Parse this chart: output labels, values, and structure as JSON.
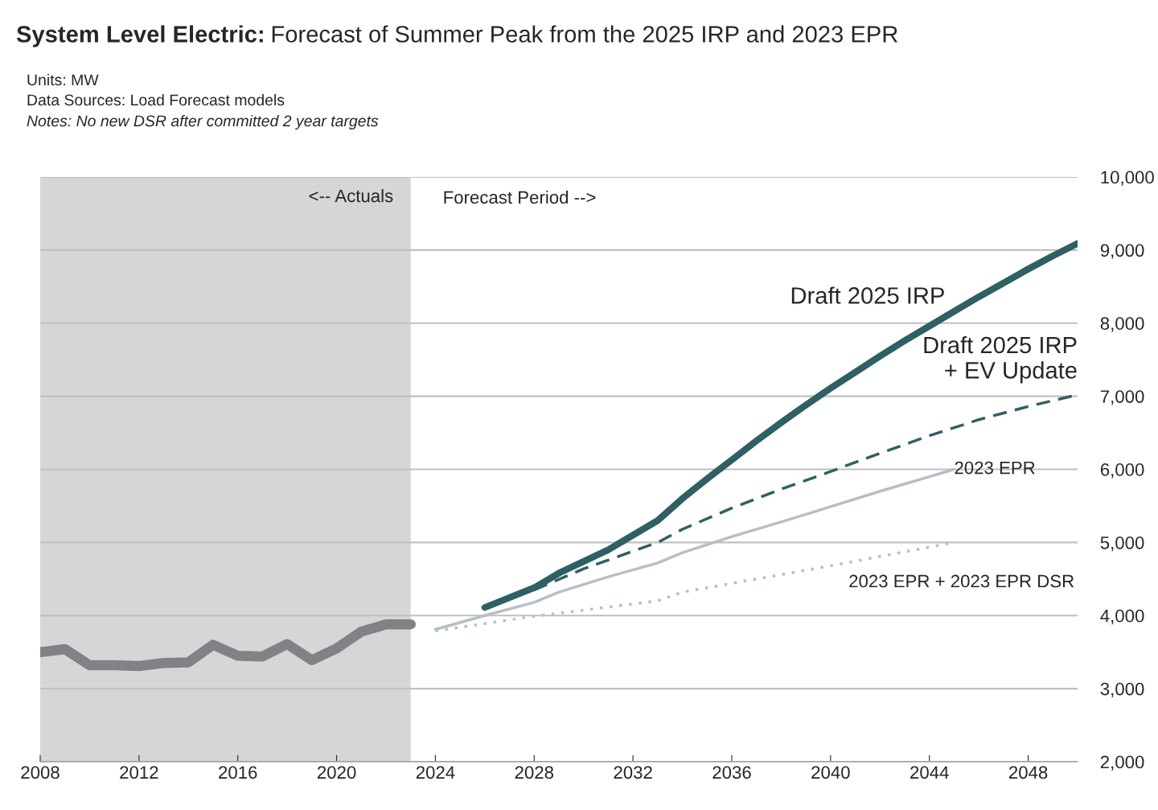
{
  "chart_data": {
    "type": "line",
    "title": "System Level Electric:",
    "subtitle": "Forecast of Summer Peak from the 2025 IRP and 2023 EPR",
    "annotations": [
      "Units: MW",
      "Data Sources: Load Forecast models",
      "Notes: No new DSR after committed 2 year targets",
      "<-- Actuals",
      "Forecast Period -->"
    ],
    "series": [
      {
        "color": "#808285",
        "line_style": "solid",
        "x": [
          2008,
          2009,
          2010,
          2011,
          2012,
          2013,
          2014,
          2015,
          2016,
          2017,
          2018,
          2019,
          2020,
          2021,
          2022,
          2023
        ],
        "values": [
          3500,
          3540,
          3320,
          3320,
          3310,
          3350,
          3360,
          3600,
          3450,
          3440,
          3610,
          3390,
          3550,
          3780,
          3880,
          3880
        ]
      },
      {
        "name": "Draft 2025 IRP",
        "color": "#2f6063",
        "line_style": "solid",
        "x": [
          2026,
          2028,
          2029,
          2031,
          2033,
          2034,
          2035,
          2036,
          2037,
          2038,
          2039,
          2040,
          2041,
          2042,
          2043,
          2044,
          2045,
          2046,
          2047,
          2048,
          2049,
          2050
        ],
        "values": [
          4110,
          4380,
          4580,
          4900,
          5300,
          5600,
          5870,
          6130,
          6390,
          6640,
          6880,
          7110,
          7330,
          7550,
          7760,
          7960,
          8160,
          8360,
          8550,
          8740,
          8920,
          9090
        ]
      },
      {
        "name": "Draft 2025 IRP\n+ EV Update",
        "color": "#2f6063",
        "line_style": "dashed",
        "x": [
          2028,
          2030,
          2033,
          2034,
          2036,
          2038,
          2040,
          2042,
          2044,
          2046,
          2048,
          2050
        ],
        "values": [
          4350,
          4640,
          5000,
          5180,
          5470,
          5730,
          5970,
          6220,
          6460,
          6680,
          6860,
          7020
        ]
      },
      {
        "name": "2023 EPR",
        "color": "#b6bec6",
        "line_style": "solid",
        "x": [
          2024,
          2026,
          2028,
          2029,
          2031,
          2033,
          2034,
          2036,
          2038,
          2040,
          2042,
          2044,
          2045
        ],
        "values": [
          3810,
          4000,
          4180,
          4320,
          4530,
          4720,
          4860,
          5080,
          5280,
          5490,
          5700,
          5900,
          6000
        ]
      },
      {
        "name": "2023 EPR + 2023 EPR DSR",
        "color": "#b6bec6",
        "line_style": "dotted",
        "x": [
          2024,
          2028,
          2033,
          2034,
          2040,
          2045
        ],
        "values": [
          3790,
          3990,
          4200,
          4320,
          4680,
          5000
        ]
      }
    ],
    "bands": [
      {
        "axis": "x",
        "from": 2008,
        "to": 2023,
        "color": "#d6d6d6"
      }
    ],
    "xlim": [
      2008,
      2050
    ],
    "xticks": [
      2008,
      2012,
      2016,
      2020,
      2024,
      2028,
      2032,
      2036,
      2040,
      2044,
      2048
    ],
    "ylim": [
      2000,
      10000
    ],
    "yticks": [
      {
        "value": 2000,
        "label": "2,000"
      },
      {
        "value": 3000,
        "label": "3,000"
      },
      {
        "value": 4000,
        "label": "4,000"
      },
      {
        "value": 5000,
        "label": "5,000"
      },
      {
        "value": 6000,
        "label": "6,000"
      },
      {
        "value": 7000,
        "label": "7,000"
      },
      {
        "value": 8000,
        "label": "8,000"
      },
      {
        "value": 9000,
        "label": "9,000"
      },
      {
        "value": 10000,
        "label": "10,000"
      }
    ],
    "grid": "y",
    "legend": false
  }
}
